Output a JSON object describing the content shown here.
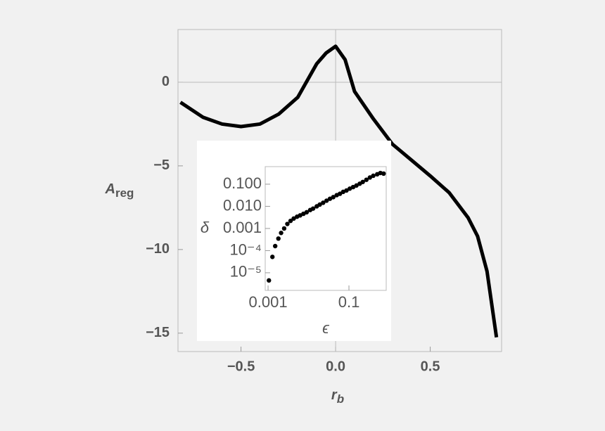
{
  "chart_data": [
    {
      "type": "line",
      "xlabel": "r",
      "xlabel_sub": "b",
      "ylabel": "A",
      "ylabel_sub": "reg",
      "xlim": [
        -0.833,
        0.877
      ],
      "ylim": [
        -16.1,
        3.15
      ],
      "xticks": [
        {
          "value": -0.5,
          "label": "−0.5"
        },
        {
          "value": 0,
          "label": "0.0"
        },
        0.5
      ],
      "yticks": [
        0,
        {
          "value": -5,
          "label": "−5"
        },
        {
          "value": -10,
          "label": "−10"
        },
        {
          "value": -15,
          "label": "−15"
        }
      ],
      "color": "#000000",
      "x": [
        -0.82,
        -0.7,
        -0.6,
        -0.5,
        -0.4,
        -0.3,
        -0.2,
        -0.1,
        -0.05,
        0,
        0.05,
        0.1,
        0.2,
        0.3,
        0.4,
        0.5,
        0.6,
        0.7,
        0.75,
        0.8,
        0.85
      ],
      "values": [
        -1.2,
        -2.1,
        -2.5,
        -2.65,
        -2.5,
        -1.9,
        -0.9,
        1.1,
        1.75,
        2.15,
        1.35,
        -0.55,
        -2.2,
        -3.7,
        -4.65,
        -5.6,
        -6.6,
        -8.1,
        -9.2,
        -11.3,
        -15.25
      ]
    },
    {
      "type": "scatter",
      "xlabel": "ϵ",
      "ylabel": "δ",
      "xscale": "log",
      "yscale": "log",
      "xlim": [
        0.00085,
        0.835
      ],
      "ylim": [
        1.6e-06,
        0.62
      ],
      "xticks": [
        0.001,
        0.1
      ],
      "yticks": [
        {
          "value": 0.1,
          "label": "0.100"
        },
        {
          "value": 0.01,
          "label": "0.010"
        },
        0.001,
        {
          "value": 0.0001,
          "label": "10⁻⁴"
        },
        {
          "value": 1e-05,
          "label": "10⁻⁵"
        }
      ],
      "color": "#000000",
      "x": [
        0.00105,
        0.00128,
        0.0015,
        0.0018,
        0.0021,
        0.0025,
        0.003,
        0.0036,
        0.0043,
        0.0052,
        0.0062,
        0.0075,
        0.009,
        0.011,
        0.013,
        0.016,
        0.019,
        0.023,
        0.028,
        0.034,
        0.041,
        0.05,
        0.06,
        0.072,
        0.087,
        0.105,
        0.127,
        0.153,
        0.185,
        0.22,
        0.27,
        0.33,
        0.4,
        0.5,
        0.6,
        0.72
      ],
      "values": [
        4.5e-06,
        5.2e-05,
        0.00016,
        0.00035,
        0.00063,
        0.001,
        0.0016,
        0.0022,
        0.0028,
        0.0034,
        0.0039,
        0.0046,
        0.0054,
        0.0068,
        0.0079,
        0.01,
        0.012,
        0.0145,
        0.018,
        0.022,
        0.026,
        0.032,
        0.037,
        0.045,
        0.052,
        0.063,
        0.074,
        0.087,
        0.105,
        0.126,
        0.158,
        0.2,
        0.24,
        0.28,
        0.32,
        0.3
      ]
    }
  ]
}
